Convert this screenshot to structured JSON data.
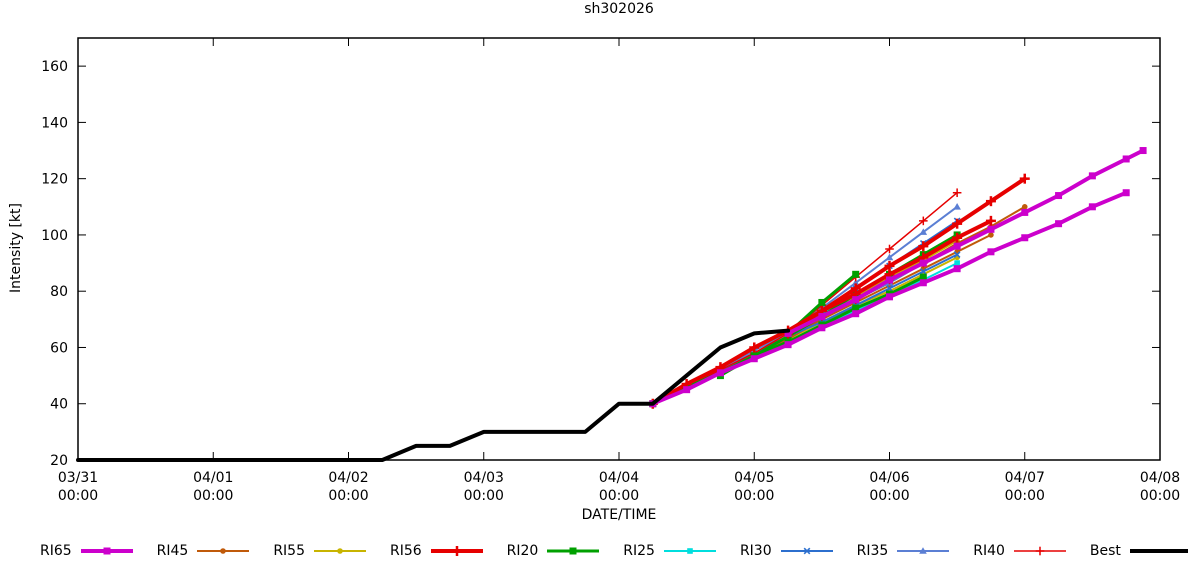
{
  "window_title": "sh302026",
  "chart_data": {
    "type": "line",
    "title": "sh302026",
    "xlabel": "DATE/TIME",
    "ylabel": "Intensity [kt]",
    "ylim": [
      20,
      170
    ],
    "yticks": [
      20,
      40,
      60,
      80,
      100,
      120,
      140,
      160
    ],
    "x_hours_range": [
      0,
      192
    ],
    "grid": false,
    "legend_position": "bottom",
    "xticks": [
      {
        "t": 0,
        "label": [
          "03/31",
          "00:00"
        ]
      },
      {
        "t": 24,
        "label": [
          "04/01",
          "00:00"
        ]
      },
      {
        "t": 48,
        "label": [
          "04/02",
          "00:00"
        ]
      },
      {
        "t": 72,
        "label": [
          "04/03",
          "00:00"
        ]
      },
      {
        "t": 96,
        "label": [
          "04/04",
          "00:00"
        ]
      },
      {
        "t": 120,
        "label": [
          "04/05",
          "00:00"
        ]
      },
      {
        "t": 144,
        "label": [
          "04/06",
          "00:00"
        ]
      },
      {
        "t": 168,
        "label": [
          "04/07",
          "00:00"
        ]
      },
      {
        "t": 192,
        "label": [
          "04/08",
          "00:00"
        ]
      }
    ],
    "legend_order": [
      "RI65",
      "RI45",
      "RI55",
      "RI56",
      "RI20",
      "RI25",
      "RI30",
      "RI35",
      "RI40",
      "Best"
    ],
    "draw_order": [
      "RI55",
      "RI45",
      "RI25",
      "RI30",
      "RI35",
      "RI40",
      "RI20",
      "RI56",
      "RI65",
      "Best"
    ],
    "series": [
      {
        "name": "RI65",
        "color": "#cc00cc",
        "width": 4,
        "marker": "square",
        "runs": [
          {
            "t": [
              102,
              108,
              114,
              120,
              126,
              132,
              138,
              144,
              150,
              156,
              162,
              168,
              174,
              180,
              186
            ],
            "v": [
              40,
              45,
              51,
              56,
              61,
              67,
              72,
              78,
              83,
              88,
              94,
              99,
              104,
              110,
              115
            ]
          },
          {
            "t": [
              126,
              132,
              138,
              144,
              150,
              156,
              162,
              168,
              174,
              180,
              186,
              189
            ],
            "v": [
              65,
              71,
              77,
              84,
              90,
              96,
              102,
              108,
              114,
              121,
              127,
              130
            ]
          }
        ]
      },
      {
        "name": "RI45",
        "color": "#c05a0a",
        "width": 2,
        "marker": "circle",
        "runs": [
          {
            "t": [
              102,
              108,
              114,
              120,
              126,
              132,
              138,
              144,
              150,
              156,
              162
            ],
            "v": [
              40,
              46,
              52,
              58,
              64,
              70,
              76,
              82,
              88,
              94,
              100
            ]
          },
          {
            "t": [
              114,
              120,
              126,
              132,
              138,
              144,
              150,
              156,
              162,
              168
            ],
            "v": [
              50,
              57,
              63,
              70,
              77,
              83,
              90,
              97,
              103,
              110
            ]
          }
        ]
      },
      {
        "name": "RI55",
        "color": "#c8b400",
        "width": 2,
        "marker": "circle",
        "runs": [
          {
            "t": [
              102,
              108,
              114,
              120,
              126,
              132,
              138,
              144,
              150,
              156
            ],
            "v": [
              40,
              46,
              52,
              57,
              63,
              69,
              75,
              80,
              86,
              92
            ]
          },
          {
            "t": [
              126,
              132,
              138,
              144,
              150,
              156
            ],
            "v": [
              65,
              72,
              78,
              85,
              91,
              98
            ]
          }
        ]
      },
      {
        "name": "RI56",
        "color": "#e60000",
        "width": 4,
        "marker": "plus",
        "runs": [
          {
            "t": [
              102,
              108,
              114,
              120,
              126,
              132,
              138,
              144,
              150,
              156,
              162
            ],
            "v": [
              40,
              47,
              53,
              60,
              66,
              73,
              79,
              86,
              92,
              99,
              105
            ]
          },
          {
            "t": [
              126,
              132,
              138,
              144,
              150,
              156,
              162,
              168
            ],
            "v": [
              65,
              73,
              81,
              89,
              96,
              104,
              112,
              120
            ]
          }
        ]
      },
      {
        "name": "RI20",
        "color": "#00a000",
        "width": 3,
        "marker": "square",
        "runs": [
          {
            "t": [
              102,
              108,
              114,
              120,
              126,
              132,
              138,
              144,
              150
            ],
            "v": [
              40,
              46,
              51,
              57,
              62,
              68,
              74,
              79,
              85
            ]
          },
          {
            "t": [
              114,
              120,
              126,
              132,
              138,
              144,
              150,
              156
            ],
            "v": [
              50,
              57,
              64,
              71,
              79,
              86,
              93,
              100
            ]
          },
          {
            "t": [
              126,
              132,
              138
            ],
            "v": [
              65,
              76,
              86
            ]
          }
        ]
      },
      {
        "name": "RI25",
        "color": "#00dede",
        "width": 2,
        "marker": "square",
        "runs": [
          {
            "t": [
              102,
              108,
              114,
              120,
              126,
              132,
              138,
              144,
              150,
              156
            ],
            "v": [
              40,
              46,
              51,
              57,
              62,
              68,
              73,
              79,
              84,
              90
            ]
          },
          {
            "t": [
              126,
              132,
              138,
              144,
              150,
              156
            ],
            "v": [
              65,
              72,
              79,
              86,
              93,
              100
            ]
          }
        ]
      },
      {
        "name": "RI30",
        "color": "#2c6fce",
        "width": 2,
        "marker": "x",
        "runs": [
          {
            "t": [
              102,
              108,
              114,
              120,
              126,
              132,
              138,
              144,
              150,
              156
            ],
            "v": [
              40,
              46,
              52,
              58,
              64,
              69,
              75,
              81,
              87,
              93
            ]
          },
          {
            "t": [
              126,
              132,
              138,
              144,
              150,
              156
            ],
            "v": [
              65,
              73,
              81,
              89,
              97,
              105
            ]
          }
        ]
      },
      {
        "name": "RI35",
        "color": "#5b7fd4",
        "width": 2,
        "marker": "triangle",
        "runs": [
          {
            "t": [
              102,
              108,
              114,
              120,
              126,
              132,
              138,
              144,
              150,
              156
            ],
            "v": [
              40,
              46,
              52,
              59,
              65,
              71,
              77,
              83,
              90,
              96
            ]
          },
          {
            "t": [
              126,
              132,
              138,
              144,
              150,
              156
            ],
            "v": [
              65,
              74,
              83,
              92,
              101,
              110
            ]
          }
        ]
      },
      {
        "name": "RI40",
        "color": "#e60000",
        "width": 1.5,
        "marker": "plus",
        "runs": [
          {
            "t": [
              102,
              108,
              114,
              120,
              126,
              132,
              138,
              144,
              150
            ],
            "v": [
              40,
              46,
              52,
              58,
              65,
              71,
              77,
              84,
              90
            ]
          },
          {
            "t": [
              126,
              132,
              138,
              144,
              150,
              156
            ],
            "v": [
              65,
              75,
              85,
              95,
              105,
              115
            ]
          }
        ]
      },
      {
        "name": "Best",
        "color": "#000000",
        "width": 4,
        "marker": "none",
        "runs": [
          {
            "t": [
              0,
              54,
              60,
              66,
              72,
              90,
              96,
              102,
              108,
              114,
              120,
              126
            ],
            "v": [
              20,
              20,
              25,
              25,
              30,
              30,
              40,
              40,
              50,
              60,
              65,
              66
            ]
          }
        ]
      }
    ]
  }
}
